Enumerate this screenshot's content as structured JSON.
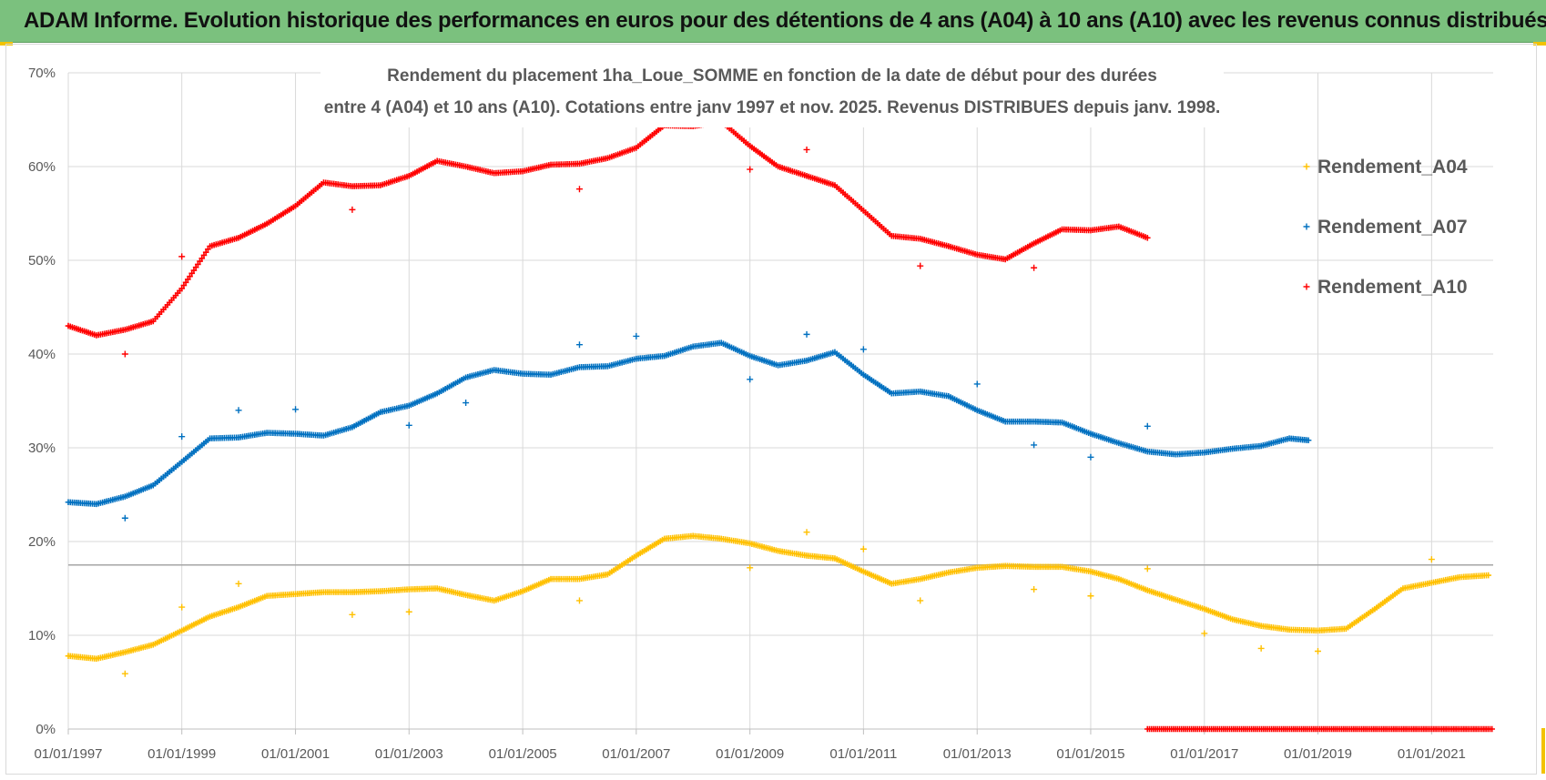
{
  "header": {
    "title": "ADAM Informe. Evolution historique des performances en euros pour des détentions de 4 ans (A04) à 10 ans (A10) avec les revenus connus distribués"
  },
  "colors": {
    "header_bg": "#7bc17e",
    "corner_accent": "#f2c300",
    "A04": "#ffc000",
    "A07": "#0070c0",
    "A10": "#ff0000"
  },
  "chart_data": {
    "type": "scatter",
    "title_lines": [
      "Rendement du placement 1ha_Loue_SOMME en fonction de la date de début pour des durées",
      "entre 4 (A04) et 10 ans (A10). Cotations entre janv 1997 et nov. 2025. Revenus DISTRIBUES depuis janv. 1998."
    ],
    "x_type": "date",
    "x_range": [
      "1997-01-01",
      "2022-02-01"
    ],
    "x_tick_labels": [
      "01/01/1997",
      "01/01/1999",
      "01/01/2001",
      "01/01/2003",
      "01/01/2005",
      "01/01/2007",
      "01/01/2009",
      "01/01/2011",
      "01/01/2013",
      "01/01/2015",
      "01/01/2017",
      "01/01/2019",
      "01/01/2021"
    ],
    "y_range": [
      0,
      70
    ],
    "y_tick_labels": [
      "0%",
      "10%",
      "20%",
      "30%",
      "40%",
      "50%",
      "60%",
      "70%"
    ],
    "reference_line_y": 17.5,
    "grid": true,
    "legend_position": "right",
    "series": [
      {
        "name": "Rendement_A04",
        "color": "#ffc000",
        "points": [
          [
            "1997-01-01",
            7.8
          ],
          [
            "1997-07-01",
            7.5
          ],
          [
            "1998-01-01",
            8.2
          ],
          [
            "1998-07-01",
            9.0
          ],
          [
            "1999-01-01",
            10.5
          ],
          [
            "1999-07-01",
            12.0
          ],
          [
            "2000-01-01",
            13.0
          ],
          [
            "2000-07-01",
            14.2
          ],
          [
            "2001-01-01",
            14.4
          ],
          [
            "2001-07-01",
            14.6
          ],
          [
            "2002-01-01",
            14.6
          ],
          [
            "2002-07-01",
            14.7
          ],
          [
            "2003-01-01",
            14.9
          ],
          [
            "2003-07-01",
            15.0
          ],
          [
            "2004-01-01",
            14.3
          ],
          [
            "2004-07-01",
            13.7
          ],
          [
            "2005-01-01",
            14.7
          ],
          [
            "2005-07-01",
            16.0
          ],
          [
            "2006-01-01",
            16.0
          ],
          [
            "2006-07-01",
            16.5
          ],
          [
            "2007-01-01",
            18.5
          ],
          [
            "2007-07-01",
            20.3
          ],
          [
            "2008-01-01",
            20.6
          ],
          [
            "2008-07-01",
            20.3
          ],
          [
            "2009-01-01",
            19.8
          ],
          [
            "2009-07-01",
            19.0
          ],
          [
            "2010-01-01",
            18.5
          ],
          [
            "2010-07-01",
            18.2
          ],
          [
            "2011-01-01",
            16.8
          ],
          [
            "2011-07-01",
            15.5
          ],
          [
            "2012-01-01",
            16.0
          ],
          [
            "2012-07-01",
            16.7
          ],
          [
            "2013-01-01",
            17.2
          ],
          [
            "2013-07-01",
            17.4
          ],
          [
            "2014-01-01",
            17.3
          ],
          [
            "2014-07-01",
            17.3
          ],
          [
            "2015-01-01",
            16.8
          ],
          [
            "2015-07-01",
            16.0
          ],
          [
            "2016-01-01",
            14.8
          ],
          [
            "2016-07-01",
            13.8
          ],
          [
            "2017-01-01",
            12.8
          ],
          [
            "2017-07-01",
            11.7
          ],
          [
            "2018-01-01",
            11.0
          ],
          [
            "2018-07-01",
            10.6
          ],
          [
            "2019-01-01",
            10.5
          ],
          [
            "2019-07-01",
            10.7
          ],
          [
            "2020-01-01",
            12.8
          ],
          [
            "2020-07-01",
            15.0
          ],
          [
            "2021-01-01",
            15.6
          ],
          [
            "2021-07-01",
            16.2
          ],
          [
            "2022-01-01",
            16.4
          ]
        ],
        "outliers": [
          [
            "1998-01-01",
            5.9
          ],
          [
            "1999-01-01",
            13.0
          ],
          [
            "2000-01-01",
            15.5
          ],
          [
            "2002-01-01",
            12.2
          ],
          [
            "2003-01-01",
            12.5
          ],
          [
            "2006-01-01",
            13.7
          ],
          [
            "2009-01-01",
            17.2
          ],
          [
            "2010-01-01",
            21.0
          ],
          [
            "2011-01-01",
            19.2
          ],
          [
            "2012-01-01",
            13.7
          ],
          [
            "2014-01-01",
            14.9
          ],
          [
            "2015-01-01",
            14.2
          ],
          [
            "2016-01-01",
            17.1
          ],
          [
            "2017-01-01",
            10.2
          ],
          [
            "2018-01-01",
            8.6
          ],
          [
            "2019-01-01",
            8.3
          ],
          [
            "2021-01-01",
            18.1
          ]
        ]
      },
      {
        "name": "Rendement_A07",
        "color": "#0070c0",
        "points": [
          [
            "1997-01-01",
            24.2
          ],
          [
            "1997-07-01",
            24.0
          ],
          [
            "1998-01-01",
            24.8
          ],
          [
            "1998-07-01",
            26.0
          ],
          [
            "1999-01-01",
            28.5
          ],
          [
            "1999-07-01",
            31.0
          ],
          [
            "2000-01-01",
            31.1
          ],
          [
            "2000-07-01",
            31.6
          ],
          [
            "2001-01-01",
            31.5
          ],
          [
            "2001-07-01",
            31.3
          ],
          [
            "2002-01-01",
            32.2
          ],
          [
            "2002-07-01",
            33.8
          ],
          [
            "2003-01-01",
            34.5
          ],
          [
            "2003-07-01",
            35.8
          ],
          [
            "2004-01-01",
            37.5
          ],
          [
            "2004-07-01",
            38.3
          ],
          [
            "2005-01-01",
            37.9
          ],
          [
            "2005-07-01",
            37.8
          ],
          [
            "2006-01-01",
            38.6
          ],
          [
            "2006-07-01",
            38.7
          ],
          [
            "2007-01-01",
            39.5
          ],
          [
            "2007-07-01",
            39.8
          ],
          [
            "2008-01-01",
            40.8
          ],
          [
            "2008-07-01",
            41.2
          ],
          [
            "2009-01-01",
            39.8
          ],
          [
            "2009-07-01",
            38.8
          ],
          [
            "2010-01-01",
            39.3
          ],
          [
            "2010-07-01",
            40.2
          ],
          [
            "2011-01-01",
            37.8
          ],
          [
            "2011-07-01",
            35.8
          ],
          [
            "2012-01-01",
            36.0
          ],
          [
            "2012-07-01",
            35.5
          ],
          [
            "2013-01-01",
            34.0
          ],
          [
            "2013-07-01",
            32.8
          ],
          [
            "2014-01-01",
            32.8
          ],
          [
            "2014-07-01",
            32.7
          ],
          [
            "2015-01-01",
            31.5
          ],
          [
            "2015-07-01",
            30.5
          ],
          [
            "2016-01-01",
            29.6
          ],
          [
            "2016-07-01",
            29.3
          ],
          [
            "2017-01-01",
            29.5
          ],
          [
            "2017-07-01",
            29.9
          ],
          [
            "2018-01-01",
            30.2
          ],
          [
            "2018-07-01",
            31.0
          ],
          [
            "2018-11-01",
            30.8
          ]
        ],
        "outliers": [
          [
            "1998-01-01",
            22.5
          ],
          [
            "1999-01-01",
            31.2
          ],
          [
            "2000-01-01",
            34.0
          ],
          [
            "2001-01-01",
            34.1
          ],
          [
            "2003-01-01",
            32.4
          ],
          [
            "2004-01-01",
            34.8
          ],
          [
            "2006-01-01",
            41.0
          ],
          [
            "2007-01-01",
            41.9
          ],
          [
            "2009-01-01",
            37.3
          ],
          [
            "2010-01-01",
            42.1
          ],
          [
            "2011-01-01",
            40.5
          ],
          [
            "2013-01-01",
            36.8
          ],
          [
            "2014-01-01",
            30.3
          ],
          [
            "2015-01-01",
            29.0
          ],
          [
            "2016-01-01",
            32.3
          ]
        ]
      },
      {
        "name": "Rendement_A10",
        "color": "#ff0000",
        "points": [
          [
            "1997-01-01",
            43.0
          ],
          [
            "1997-07-01",
            42.0
          ],
          [
            "1998-01-01",
            42.6
          ],
          [
            "1998-07-01",
            43.5
          ],
          [
            "1999-01-01",
            47.0
          ],
          [
            "1999-07-01",
            51.5
          ],
          [
            "2000-01-01",
            52.4
          ],
          [
            "2000-07-01",
            53.9
          ],
          [
            "2001-01-01",
            55.8
          ],
          [
            "2001-07-01",
            58.3
          ],
          [
            "2002-01-01",
            57.9
          ],
          [
            "2002-07-01",
            58.0
          ],
          [
            "2003-01-01",
            59.0
          ],
          [
            "2003-07-01",
            60.6
          ],
          [
            "2004-01-01",
            60.0
          ],
          [
            "2004-07-01",
            59.3
          ],
          [
            "2005-01-01",
            59.5
          ],
          [
            "2005-07-01",
            60.2
          ],
          [
            "2006-01-01",
            60.3
          ],
          [
            "2006-07-01",
            60.9
          ],
          [
            "2007-01-01",
            62.0
          ],
          [
            "2007-07-01",
            64.4
          ],
          [
            "2008-01-01",
            64.3
          ],
          [
            "2008-07-01",
            64.8
          ],
          [
            "2009-01-01",
            62.2
          ],
          [
            "2009-07-01",
            60.0
          ],
          [
            "2010-01-01",
            59.0
          ],
          [
            "2010-07-01",
            58.0
          ],
          [
            "2011-01-01",
            55.3
          ],
          [
            "2011-07-01",
            52.6
          ],
          [
            "2012-01-01",
            52.3
          ],
          [
            "2012-07-01",
            51.5
          ],
          [
            "2013-01-01",
            50.6
          ],
          [
            "2013-07-01",
            50.1
          ],
          [
            "2014-01-01",
            51.8
          ],
          [
            "2014-07-01",
            53.3
          ],
          [
            "2015-01-01",
            53.2
          ],
          [
            "2015-07-01",
            53.6
          ],
          [
            "2016-01-01",
            52.4
          ]
        ],
        "outliers": [
          [
            "1998-01-01",
            40.0
          ],
          [
            "1999-01-01",
            50.4
          ],
          [
            "2002-01-01",
            55.4
          ],
          [
            "2006-01-01",
            57.6
          ],
          [
            "2009-01-01",
            59.7
          ],
          [
            "2010-01-01",
            61.8
          ],
          [
            "2012-01-01",
            49.4
          ],
          [
            "2014-01-01",
            49.2
          ]
        ],
        "zero_range": [
          "2016-01-01",
          "2022-02-01"
        ]
      }
    ]
  }
}
